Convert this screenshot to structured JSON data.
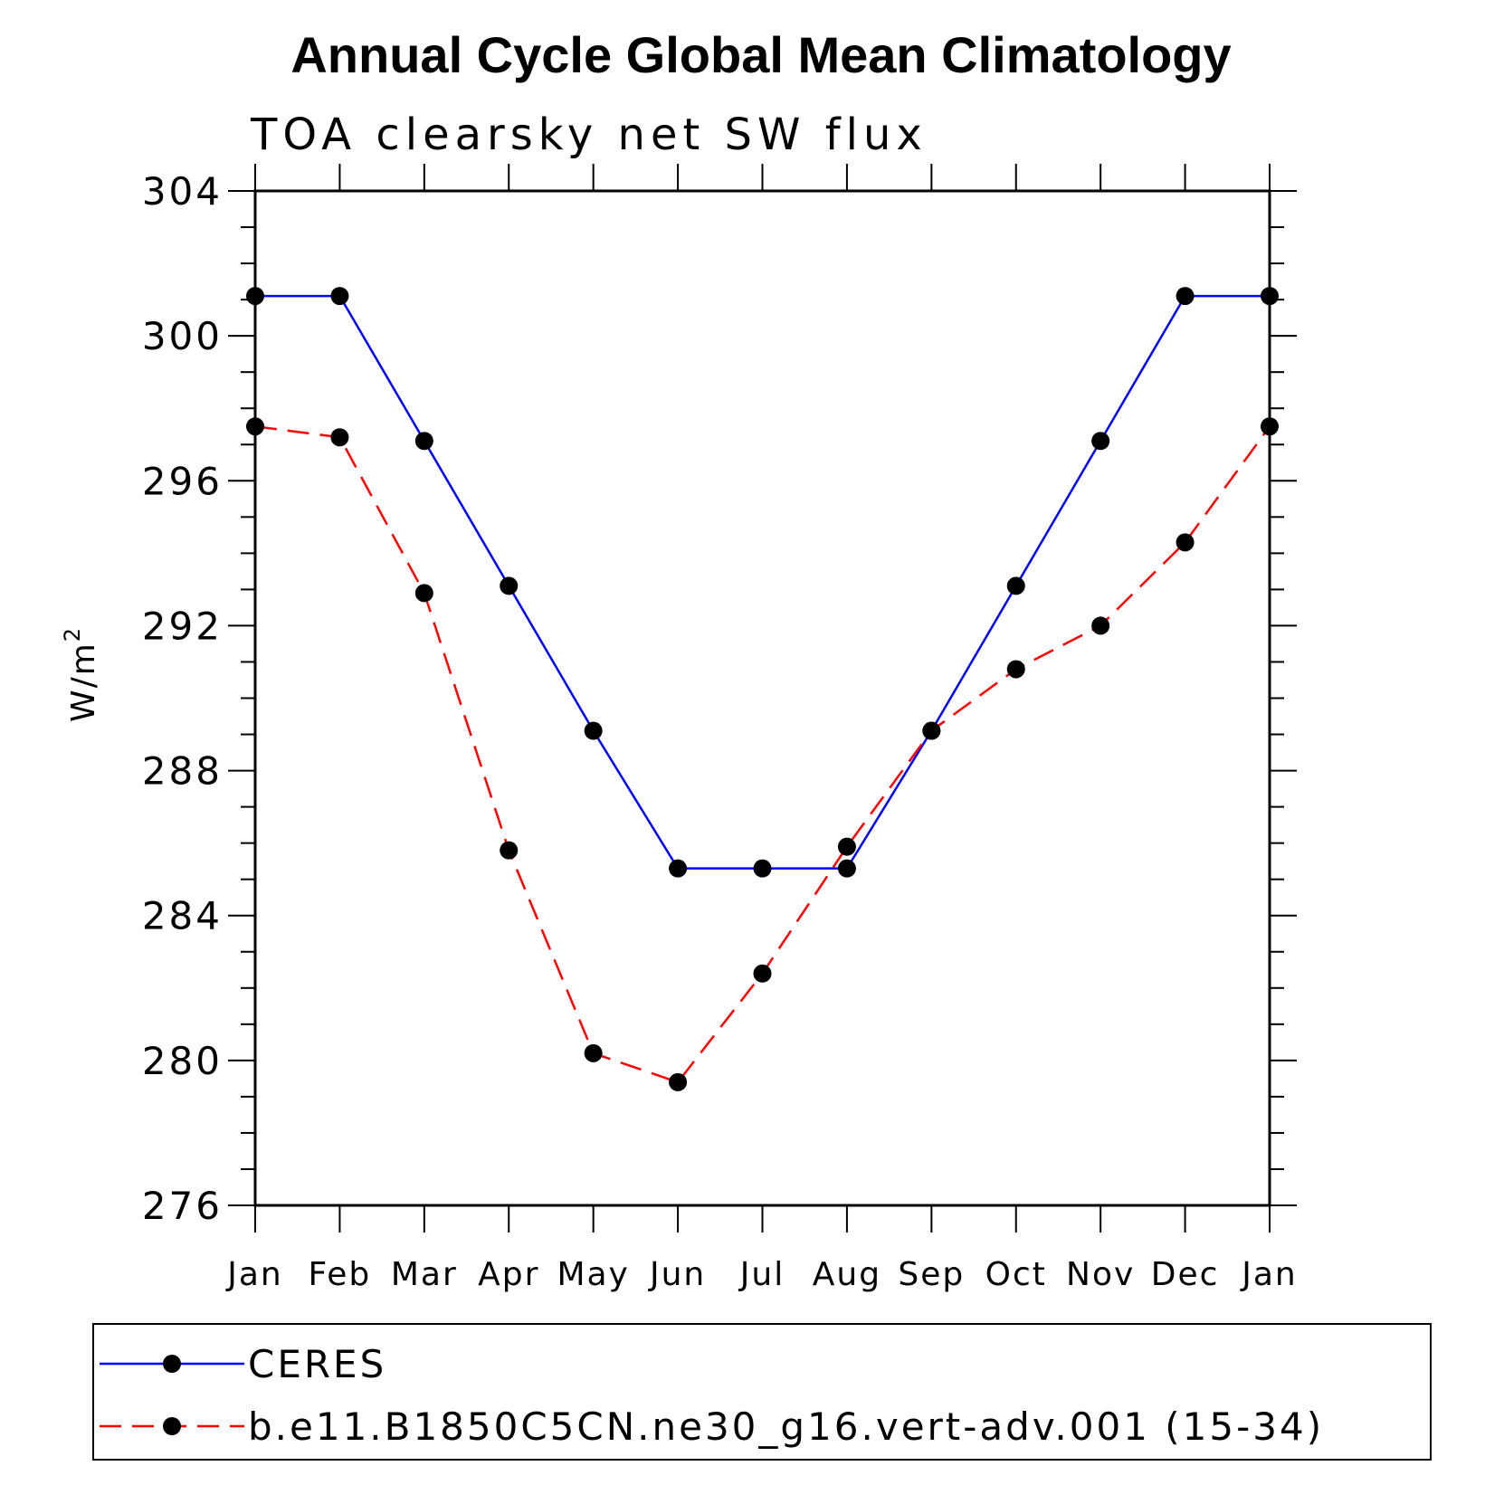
{
  "chart_data": {
    "type": "line",
    "title": "Annual Cycle Global Mean Climatology",
    "subtitle": "TOA clearsky net SW flux",
    "ylabel": "W/m",
    "ylabel_superscript": "2",
    "xlabel": "",
    "categories": [
      "Jan",
      "Feb",
      "Mar",
      "Apr",
      "May",
      "Jun",
      "Jul",
      "Aug",
      "Sep",
      "Oct",
      "Nov",
      "Dec",
      "Jan"
    ],
    "ylim": [
      276,
      304
    ],
    "yticks": [
      "276",
      "280",
      "284",
      "288",
      "292",
      "296",
      "300",
      "304"
    ],
    "series": [
      {
        "name": "CERES",
        "color": "#0000ff",
        "dashed": false,
        "values": [
          301.1,
          301.1,
          297.1,
          293.1,
          289.1,
          285.3,
          285.3,
          285.3,
          289.1,
          293.1,
          297.1,
          301.1,
          301.1
        ]
      },
      {
        "name": "b.e11.B1850C5CN.ne30_g16.vert-adv.001 (15-34)",
        "color": "#ff0000",
        "dashed": true,
        "values": [
          297.5,
          297.2,
          292.9,
          285.8,
          280.2,
          279.4,
          282.4,
          285.9,
          289.1,
          290.8,
          292.0,
          294.3,
          297.5
        ]
      }
    ]
  }
}
